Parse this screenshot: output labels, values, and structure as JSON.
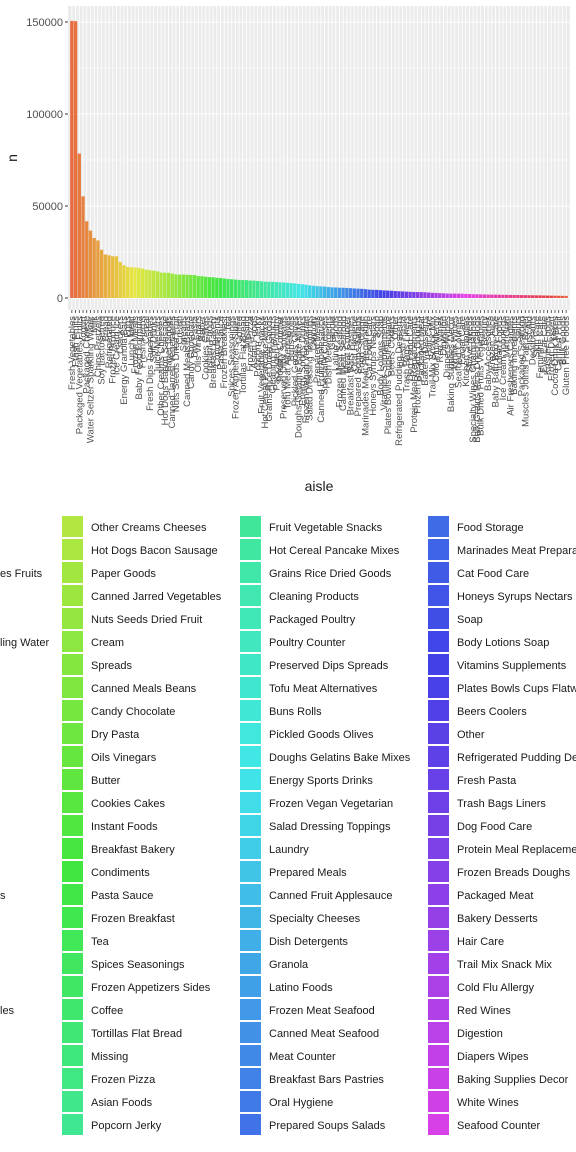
{
  "chart_data": {
    "type": "bar",
    "xlabel": "aisle",
    "ylabel": "n",
    "ylim": [
      0,
      157000
    ],
    "yticks": [
      0,
      50000,
      100000,
      150000
    ],
    "ytick_labels": [
      "0",
      "50000",
      "100000",
      "150000"
    ],
    "grid": true,
    "legend_placement": "bottom",
    "categories": [
      "Fresh Vegetables",
      "Fresh Fruits",
      "Packaged Vegetables Fruits",
      "Yogurt",
      "Packaged Cheese",
      "Water Seltzer Sparkling Water",
      "Milk",
      "Chips Pretzels",
      "Soy Lactosefree",
      "Bread",
      "Refrigerated",
      "Frozen Produce",
      "Ice Cream Ice",
      "Crackers",
      "Energy Granola Bars",
      "Eggs",
      "Lunch Meat",
      "Frozen Meals",
      "Baby Food Formula",
      "Fresh Herbs",
      "Cereal",
      "Fresh Dips Tapenades",
      "Soft Drinks",
      "Juice Nectars",
      "Other Creams Cheeses",
      "Hot Dogs Bacon Sausage",
      "Paper Goods",
      "Canned Jarred Vegetables",
      "Nuts Seeds Dried Fruit",
      "Cream",
      "Spreads",
      "Canned Meals Beans",
      "Candy Chocolate",
      "Dry Pasta",
      "Oils Vinegars",
      "Butter",
      "Cookies Cakes",
      "Instant Foods",
      "Breakfast Bakery",
      "Condiments",
      "Pasta Sauce",
      "Frozen Breakfast",
      "Tea",
      "Spices Seasonings",
      "Frozen Appetizers Sides",
      "Coffee",
      "Tortillas Flat Bread",
      "Missing",
      "Frozen Pizza",
      "Asian Foods",
      "Popcorn Jerky",
      "Fruit Vegetable Snacks",
      "Hot Cereal Pancake Mixes",
      "Grains Rice Dried Goods",
      "Cleaning Products",
      "Packaged Poultry",
      "Poultry Counter",
      "Preserved Dips Spreads",
      "Tofu Meat Alternatives",
      "Buns Rolls",
      "Pickled Goods Olives",
      "Doughs Gelatins Bake Mixes",
      "Energy Sports Drinks",
      "Frozen Vegan Vegetarian",
      "Salad Dressing Toppings",
      "Laundry",
      "Prepared Meals",
      "Canned Fruit Applesauce",
      "Specialty Cheeses",
      "Dish Detergents",
      "Granola",
      "Latino Foods",
      "Frozen Meat Seafood",
      "Canned Meat Seafood",
      "Meat Counter",
      "Breakfast Bars Pastries",
      "Oral Hygiene",
      "Prepared Soups Salads",
      "Food Storage",
      "Marinades Meat Preparation",
      "Cat Food Care",
      "Honeys Syrups Nectars",
      "Soap",
      "Body Lotions Soap",
      "Vitamins Supplements",
      "Plates Bowls Cups Flatware",
      "Beers Coolers",
      "Other",
      "Refrigerated Pudding Desserts",
      "Fresh Pasta",
      "Trash Bags Liners",
      "Dog Food Care",
      "Protein Meal Replacements",
      "Frozen Breads Doughs",
      "Packaged Meat",
      "Bakery Desserts",
      "Hair Care",
      "Trail Mix Snack Mix",
      "Cold Flu Allergy",
      "Red Wines",
      "Digestion",
      "Diapers Wipes",
      "Baking Supplies Decor",
      "White Wines",
      "Seafood Counter",
      "Facial Care",
      "Kitchen Supplies",
      "Shave Needs",
      "Specialty Wines Champagnes",
      "Bulk Grains Rice Dried Goods",
      "Bulk Dried Fruits Vegetables",
      "Beauty",
      "Baby Accessories",
      "Frozen Juice",
      "Baby Bath Body Care",
      "Indian Foods",
      "Ice Cream Toppings",
      "Mint Gum",
      "Air Fresheners Candles",
      "Baking Ingredients",
      "Spirits",
      "Packaged Seafood",
      "Muscles Joints Pain Relief",
      "First Aid",
      "Deodorants",
      "Skin Care",
      "Feminine Care",
      "Eye Ear Care",
      "Kosher Foods",
      "Frozen Dessert",
      "Cocoa Drink Mixes",
      "Canned Fruit",
      "Bulk Goods",
      "Gluten Free Foods"
    ],
    "values": [
      150609,
      150473,
      78493,
      55240,
      41699,
      36617,
      32644,
      31269,
      26240,
      23635,
      23228,
      22655,
      22676,
      19592,
      17852,
      16916,
      16613,
      16572,
      16398,
      15962,
      15433,
      15121,
      14864,
      14508,
      13841,
      13740,
      13702,
      13300,
      12836,
      12744,
      12724,
      12639,
      12525,
      12510,
      11924,
      11843,
      11550,
      11356,
      11293,
      10979,
      10867,
      10615,
      10341,
      10212,
      10029,
      9839,
      9753,
      9711,
      9475,
      9433,
      9273,
      9033,
      8902,
      8813,
      8784,
      8652,
      8485,
      8414,
      8259,
      8132,
      7910,
      7671,
      7475,
      7217,
      6858,
      6671,
      6439,
      6316,
      6243,
      5961,
      5781,
      5736,
      5591,
      5569,
      5456,
      5339,
      5172,
      5094,
      4991,
      4813,
      4562,
      4459,
      4432,
      4276,
      4135,
      4046,
      3949,
      3800,
      3676,
      3611,
      3474,
      3382,
      3288,
      3238,
      3217,
      3123,
      2993,
      2820,
      2757,
      2626,
      2556,
      2437,
      2397,
      2391,
      2357,
      2331,
      2233,
      2180,
      2056,
      2031,
      1976,
      1956,
      1877,
      1860,
      1812,
      1781,
      1736,
      1708,
      1669,
      1640,
      1624,
      1587,
      1560,
      1517,
      1494,
      1458,
      1437,
      1380,
      1330,
      1290,
      1255,
      1215,
      1180,
      1145
    ],
    "legend_entries": [
      "Other Creams Cheeses",
      "Hot Dogs Bacon Sausage",
      "Paper Goods",
      "Canned Jarred Vegetables",
      "Nuts Seeds Dried Fruit",
      "Cream",
      "Spreads",
      "Canned Meals Beans",
      "Candy Chocolate",
      "Dry Pasta",
      "Oils Vinegars",
      "Butter",
      "Cookies Cakes",
      "Instant Foods",
      "Breakfast Bakery",
      "Condiments",
      "Pasta Sauce",
      "Frozen Breakfast",
      "Tea",
      "Spices Seasonings",
      "Frozen Appetizers Sides",
      "Coffee",
      "Tortillas Flat Bread",
      "Missing",
      "Frozen Pizza",
      "Asian Foods",
      "Popcorn Jerky",
      "Fruit Vegetable Snacks",
      "Hot Cereal Pancake Mixes",
      "Grains Rice Dried Goods",
      "Cleaning Products",
      "Packaged Poultry",
      "Poultry Counter",
      "Preserved Dips Spreads",
      "Tofu Meat Alternatives",
      "Buns Rolls",
      "Pickled Goods Olives",
      "Doughs Gelatins Bake Mixes",
      "Energy Sports Drinks",
      "Frozen Vegan Vegetarian",
      "Salad Dressing Toppings",
      "Laundry",
      "Prepared Meals",
      "Canned Fruit Applesauce",
      "Specialty Cheeses",
      "Dish Detergents",
      "Granola",
      "Latino Foods",
      "Frozen Meat Seafood",
      "Canned Meat Seafood",
      "Meat Counter",
      "Breakfast Bars Pastries",
      "Oral Hygiene",
      "Prepared Soups Salads",
      "Food Storage",
      "Marinades Meat Preparation",
      "Cat Food Care",
      "Honeys Syrups Nectars",
      "Soap",
      "Body Lotions Soap",
      "Vitamins Supplements",
      "Plates Bowls Cups Flatware",
      "Beers Coolers",
      "Other",
      "Refrigerated Pudding Desserts",
      "Fresh Pasta",
      "Trash Bags Liners",
      "Dog Food Care",
      "Protein Meal Replacements",
      "Frozen Breads Doughs",
      "Packaged Meat",
      "Bakery Desserts",
      "Hair Care",
      "Trail Mix Snack Mix",
      "Cold Flu Allergy",
      "Red Wines",
      "Digestion",
      "Diapers Wipes",
      "Baking Supplies Decor",
      "White Wines",
      "Seafood Counter"
    ],
    "legend_left_partial": [
      {
        "row": 2,
        "text": "es Fruits"
      },
      {
        "row": 5,
        "text": "ling Water"
      },
      {
        "row": 16,
        "text": "s"
      },
      {
        "row": 21,
        "text": "les"
      }
    ]
  }
}
